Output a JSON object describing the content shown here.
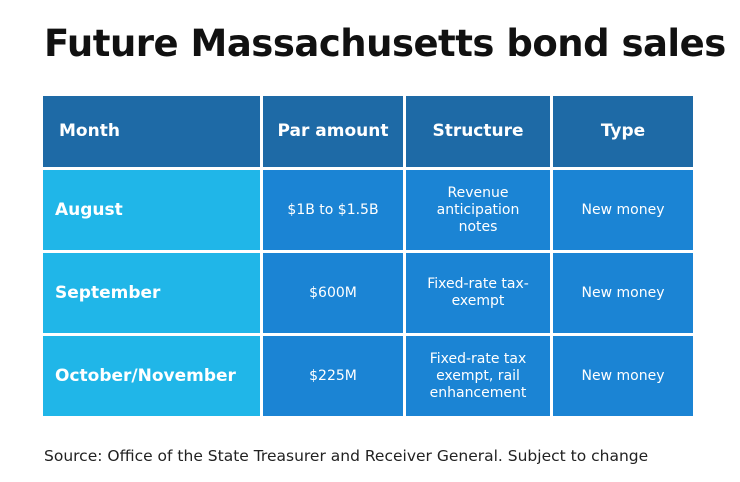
{
  "title": "Future Massachusetts bond sales",
  "table": {
    "header": [
      "Month",
      "Par amount",
      "Structure",
      "Type"
    ],
    "rows": [
      [
        "August",
        "$1B to $1.5B",
        "Revenue anticipation notes",
        "New money"
      ],
      [
        "September",
        "$600M",
        "Fixed-rate tax-exempt",
        "New money"
      ],
      [
        "October/November",
        "$225M",
        "Fixed-rate tax exempt, rail enhancement",
        "New money"
      ]
    ]
  },
  "source": "Source: Office of the State Treasurer and Receiver General. Subject to change"
}
